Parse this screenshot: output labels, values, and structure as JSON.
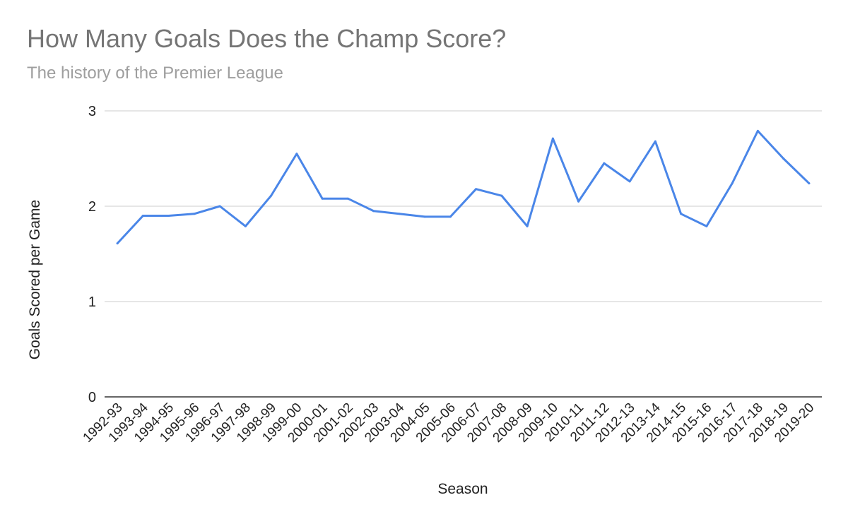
{
  "chart_data": {
    "type": "line",
    "title": "How Many Goals Does the Champ Score?",
    "subtitle": "The history of the Premier League",
    "xlabel": "Season",
    "ylabel": "Goals Scored per Game",
    "ylim": [
      0,
      3
    ],
    "yticks": [
      "0",
      "1",
      "2",
      "3"
    ],
    "grid": true,
    "line_color": "#4a86e8",
    "categories": [
      "1992-93",
      "1993-94",
      "1994-95",
      "1995-96",
      "1996-97",
      "1997-98",
      "1998-99",
      "1999-00",
      "2000-01",
      "2001-02",
      "2002-03",
      "2003-04",
      "2004-05",
      "2005-06",
      "2006-07",
      "2007-08",
      "2008-09",
      "2009-10",
      "2010-11",
      "2011-12",
      "2012-13",
      "2013-14",
      "2014-15",
      "2015-16",
      "2016-17",
      "2017-18",
      "2018-19",
      "2019-20"
    ],
    "series": [
      {
        "values": [
          1.61,
          1.9,
          1.9,
          1.92,
          2.0,
          1.79,
          2.11,
          2.55,
          2.08,
          2.08,
          1.95,
          1.92,
          1.89,
          1.89,
          2.18,
          2.11,
          1.79,
          2.71,
          2.05,
          2.45,
          2.26,
          2.68,
          1.92,
          1.79,
          2.24,
          2.79,
          2.5,
          2.24
        ]
      }
    ]
  }
}
